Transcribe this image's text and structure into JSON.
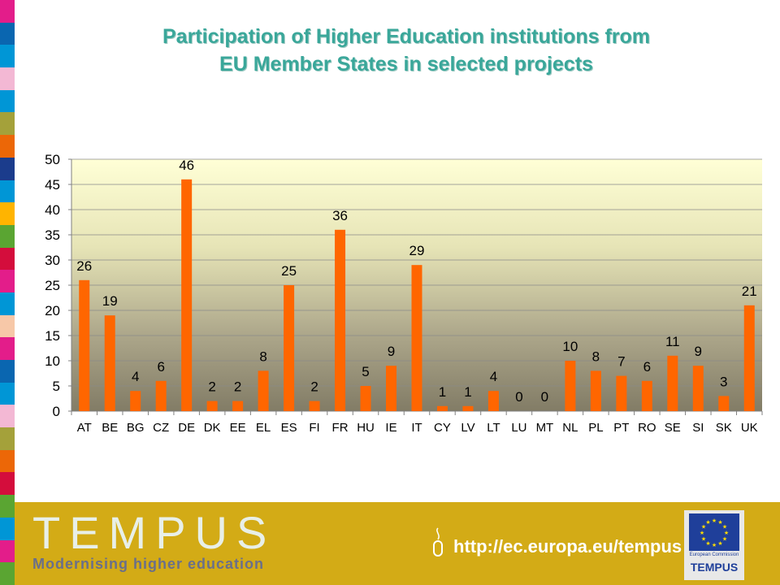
{
  "title": {
    "line1": "Participation of Higher Education institutions from",
    "line2": "EU Member States in selected projects"
  },
  "chart_data": {
    "type": "bar",
    "title": "Participation of Higher Education institutions from EU Member States in selected projects",
    "categories": [
      "AT",
      "BE",
      "BG",
      "CZ",
      "DE",
      "DK",
      "EE",
      "EL",
      "ES",
      "FI",
      "FR",
      "HU",
      "IE",
      "IT",
      "CY",
      "LV",
      "LT",
      "LU",
      "MT",
      "NL",
      "PL",
      "PT",
      "RO",
      "SE",
      "SI",
      "SK",
      "UK"
    ],
    "values": [
      26,
      19,
      4,
      6,
      46,
      2,
      2,
      8,
      25,
      2,
      36,
      5,
      9,
      29,
      1,
      1,
      4,
      0,
      0,
      10,
      8,
      7,
      6,
      11,
      9,
      3,
      21
    ],
    "ylim": [
      0,
      50
    ],
    "yticks": [
      0,
      5,
      10,
      15,
      20,
      25,
      30,
      35,
      40,
      45,
      50
    ],
    "bar_color": "#ff6600",
    "grid": true,
    "legend": "none"
  },
  "footer": {
    "brand": "TEMPUS",
    "tagline": "Modernising higher education",
    "url": "http://ec.europa.eu/tempus",
    "eu_label": "European Commission",
    "eu_program": "TEMPUS",
    "background": "#d3ab16"
  },
  "strip_colors": [
    "#e31d8a",
    "#0a66b0",
    "#0096d6",
    "#f3b8d4",
    "#0096d6",
    "#a4a13a",
    "#ec6707",
    "#1b3c8c",
    "#0096d6",
    "#ffb400",
    "#5aa532",
    "#d40d3c",
    "#e31d8a",
    "#0096d6",
    "#f7c8a8",
    "#e31d8a",
    "#0a66b0",
    "#0096d6",
    "#f3b8d4",
    "#a4a13a",
    "#ec6707",
    "#d40d3c",
    "#5aa532",
    "#0096d6",
    "#e31d8a",
    "#5aa532"
  ]
}
